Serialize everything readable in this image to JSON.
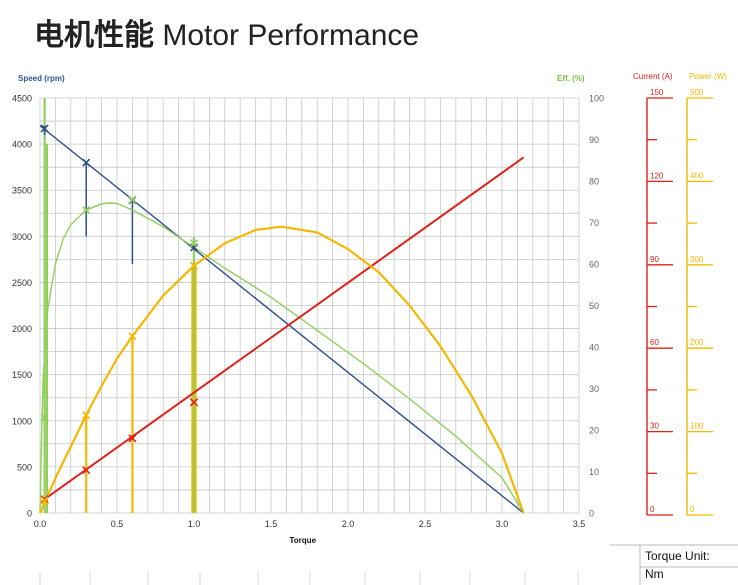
{
  "title": {
    "cn": "电机性能",
    "en": "Motor Performance"
  },
  "torque_unit": {
    "label": "Torque Unit:",
    "value": "Nm"
  },
  "colors": {
    "speed": "#2f4f8a",
    "efficiency": "#8fcf5a",
    "current": "#e0201a",
    "power": "#f5b800",
    "grid": "#c8c8c8",
    "speed_label": "#2f5597",
    "eff_label": "#7bc143"
  },
  "chart_data": {
    "type": "line",
    "xlabel": "Torque",
    "xlim": [
      0,
      3.5
    ],
    "xticks": [
      "0.0",
      "0.5",
      "1.0",
      "1.5",
      "2.0",
      "2.5",
      "3.0",
      "3.5"
    ],
    "axes": {
      "speed": {
        "label": "Speed (rpm)",
        "range": [
          0,
          4500
        ],
        "ticks": [
          "0",
          "500",
          "1000",
          "1500",
          "2000",
          "2500",
          "3000",
          "3500",
          "4000",
          "4500"
        ]
      },
      "efficiency": {
        "label": "Eff. (%)",
        "range": [
          0,
          100
        ],
        "ticks": [
          "0",
          "10",
          "20",
          "30",
          "40",
          "50",
          "60",
          "70",
          "80",
          "90",
          "100"
        ]
      },
      "current": {
        "label": "Current (A)",
        "range": [
          0,
          150
        ],
        "ticks": [
          "0",
          "30",
          "60",
          "90",
          "120",
          "150"
        ]
      },
      "power": {
        "label": "Power (W)",
        "range": [
          0,
          500
        ],
        "ticks": [
          "0",
          "100",
          "200",
          "300",
          "400",
          "500"
        ]
      }
    },
    "grid": true,
    "series": [
      {
        "key": "speed",
        "axis": "speed",
        "x": [
          0,
          3.14
        ],
        "y": [
          4200,
          0
        ],
        "markers_x": [
          0.03,
          0.3,
          0.6,
          1.0
        ],
        "markers_y": [
          4170,
          3800,
          3390,
          2880
        ]
      },
      {
        "key": "efficiency",
        "axis": "efficiency",
        "x": [
          0,
          0.01,
          0.02,
          0.05,
          0.1,
          0.15,
          0.2,
          0.3,
          0.4,
          0.45,
          0.5,
          0.6,
          0.7,
          0.8,
          1.0,
          1.2,
          1.5,
          1.8,
          2.1,
          2.4,
          2.7,
          3.0,
          3.14
        ],
        "y": [
          0,
          18,
          32,
          49,
          60,
          66,
          69.5,
          73,
          74.5,
          74.7,
          74.6,
          73,
          71,
          69,
          64,
          59,
          52,
          44,
          36,
          27.5,
          18.5,
          8.5,
          0
        ],
        "markers_x": [
          0.03,
          0.3,
          0.6,
          1.0
        ],
        "markers_y": [
          23,
          73,
          75.5,
          65
        ]
      },
      {
        "key": "current",
        "axis": "current",
        "x": [
          0.03,
          3.14
        ],
        "y": [
          5,
          128.5
        ],
        "markers_x": [
          0.03,
          0.3,
          0.6,
          1.0
        ],
        "markers_y": [
          5,
          15.5,
          27,
          40
        ]
      },
      {
        "key": "power",
        "axis": "power",
        "x": [
          0,
          0.1,
          0.2,
          0.3,
          0.4,
          0.5,
          0.6,
          0.8,
          1.0,
          1.2,
          1.4,
          1.57,
          1.8,
          2.0,
          2.2,
          2.4,
          2.6,
          2.8,
          3.0,
          3.14
        ],
        "y": [
          0,
          42,
          80,
          118,
          153,
          186,
          213,
          262,
          298,
          325,
          341,
          345,
          338,
          318,
          290,
          250,
          201,
          142,
          72,
          0
        ],
        "markers_x": [
          0.03,
          0.3,
          0.6,
          1.0
        ],
        "markers_y": [
          15,
          118,
          213,
          298
        ]
      }
    ],
    "drop_lines": [
      {
        "axis": "power",
        "x": 0.02,
        "y": 0
      },
      {
        "axis": "power",
        "x": 0.04,
        "y": 0
      },
      {
        "axis": "power",
        "x": 0.3,
        "y": 118
      },
      {
        "axis": "power",
        "x": 0.6,
        "y": 213
      },
      {
        "axis": "power",
        "x": 0.99,
        "y": 298
      },
      {
        "axis": "power",
        "x": 1.01,
        "y": 298
      },
      {
        "axis": "efficiency",
        "x": 0.03,
        "y": 100
      },
      {
        "axis": "efficiency",
        "x": 0.045,
        "y": 89
      },
      {
        "axis": "efficiency",
        "x": 1.0,
        "y": 66.5
      },
      {
        "axis": "speed",
        "x": 0.3,
        "y": 3000,
        "from": 3800
      },
      {
        "axis": "speed",
        "x": 0.6,
        "y": 2700,
        "from": 3390
      },
      {
        "axis": "speed",
        "x": 0.03,
        "y": 4100,
        "from": 4200
      }
    ]
  }
}
